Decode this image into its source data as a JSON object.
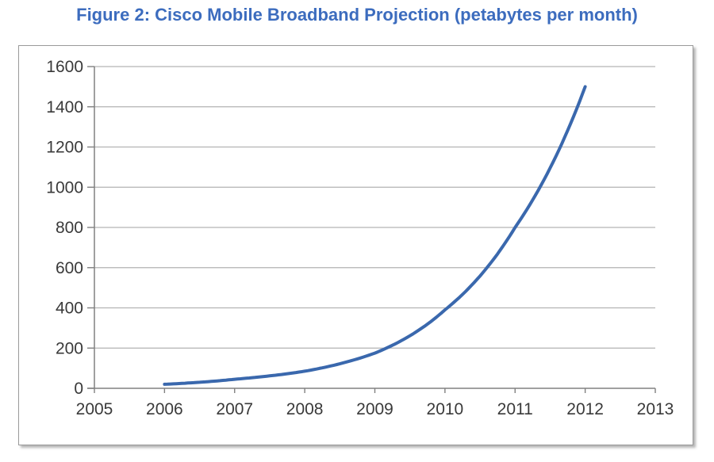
{
  "figure": {
    "title": "Figure 2: Cisco Mobile Broadband Projection (petabytes per month)"
  },
  "chart_data": {
    "type": "line",
    "title": "Figure 2: Cisco Mobile Broadband Projection (petabytes per month)",
    "ylabel": "petabytes per month",
    "x": [
      2006,
      2007,
      2008,
      2009,
      2010,
      2011,
      2012
    ],
    "values": [
      20,
      45,
      85,
      175,
      390,
      800,
      1500
    ],
    "xticks": [
      2005,
      2006,
      2007,
      2008,
      2009,
      2010,
      2011,
      2012,
      2013
    ],
    "yticks": [
      0,
      200,
      400,
      600,
      800,
      1000,
      1200,
      1400,
      1600
    ],
    "xlim": [
      2005,
      2013
    ],
    "ylim": [
      0,
      1600
    ],
    "grid": true,
    "legend": "none",
    "interpolation": "exponential",
    "colors": {
      "line": "#3a68ad",
      "title": "#3c6cbe",
      "grid": "#b3b3b3",
      "axis": "#808080",
      "tick_label": "#3a3a3a",
      "frame_border": "#9a9a9a"
    }
  }
}
